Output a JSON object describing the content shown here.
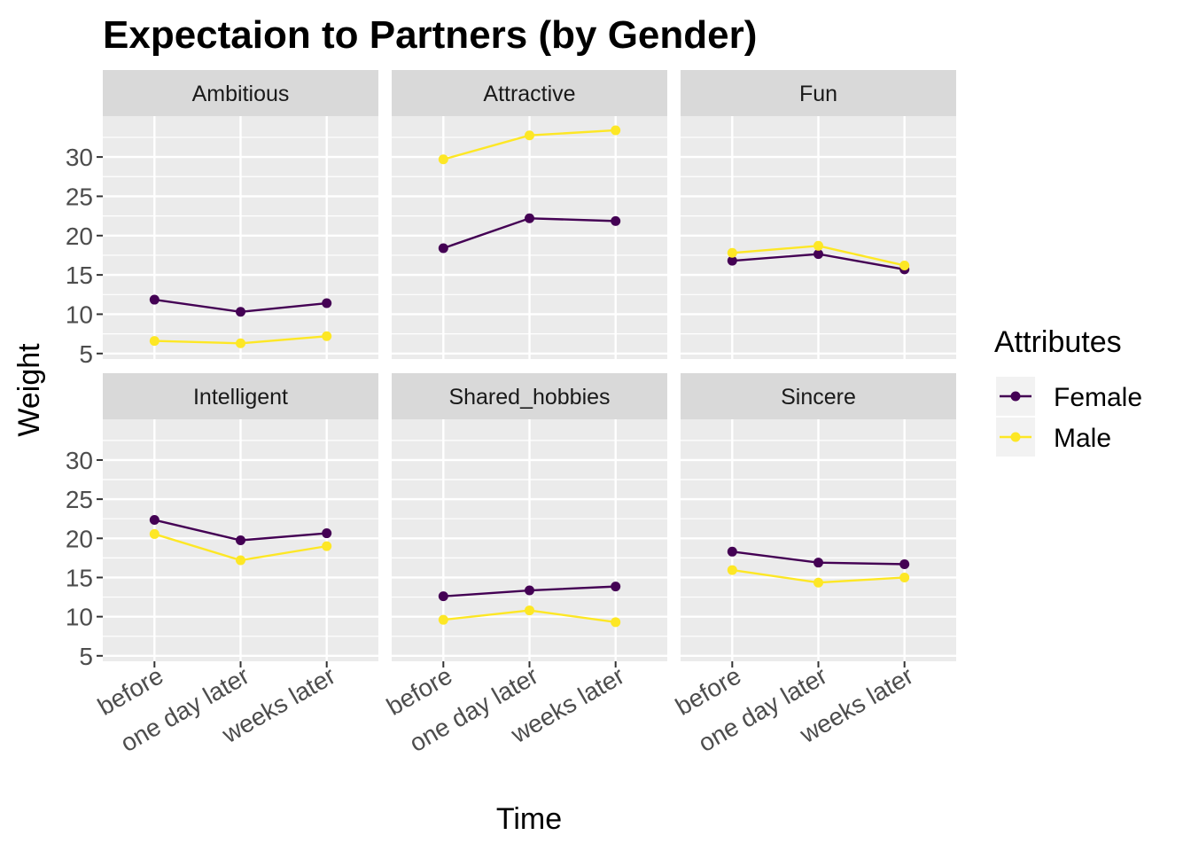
{
  "chart_data": {
    "type": "line",
    "title": "Expectaion to Partners (by Gender)",
    "xlabel": "Time",
    "ylabel": "Weight",
    "categories": [
      "before",
      "one day later",
      "weeks later"
    ],
    "ylim": [
      4.3,
      35.2
    ],
    "yticks": [
      5,
      10,
      15,
      20,
      25,
      30
    ],
    "grid": true,
    "facet_layout": "2x3",
    "legend": {
      "title": "Attributes",
      "placement": "right",
      "entries": [
        {
          "name": "Female",
          "color": "#440154"
        },
        {
          "name": "Male",
          "color": "#FDE725"
        }
      ]
    },
    "facets": [
      {
        "name": "Ambitious",
        "series": [
          {
            "name": "Female",
            "values": [
              11.85,
              10.3,
              11.4
            ]
          },
          {
            "name": "Male",
            "values": [
              6.6,
              6.3,
              7.2
            ]
          }
        ]
      },
      {
        "name": "Attractive",
        "series": [
          {
            "name": "Female",
            "values": [
              18.4,
              22.2,
              21.85
            ]
          },
          {
            "name": "Male",
            "values": [
              29.7,
              32.75,
              33.4
            ]
          }
        ]
      },
      {
        "name": "Fun",
        "series": [
          {
            "name": "Female",
            "values": [
              16.8,
              17.65,
              15.7
            ]
          },
          {
            "name": "Male",
            "values": [
              17.8,
              18.7,
              16.2
            ]
          }
        ]
      },
      {
        "name": "Intelligent",
        "series": [
          {
            "name": "Female",
            "values": [
              22.35,
              19.75,
              20.65
            ]
          },
          {
            "name": "Male",
            "values": [
              20.55,
              17.2,
              19.0
            ]
          }
        ]
      },
      {
        "name": "Shared_hobbies",
        "series": [
          {
            "name": "Female",
            "values": [
              12.6,
              13.35,
              13.85
            ]
          },
          {
            "name": "Male",
            "values": [
              9.6,
              10.8,
              9.3
            ]
          }
        ]
      },
      {
        "name": "Sincere",
        "series": [
          {
            "name": "Female",
            "values": [
              18.3,
              16.9,
              16.7
            ]
          },
          {
            "name": "Male",
            "values": [
              15.95,
              14.35,
              15.0
            ]
          }
        ]
      }
    ]
  }
}
